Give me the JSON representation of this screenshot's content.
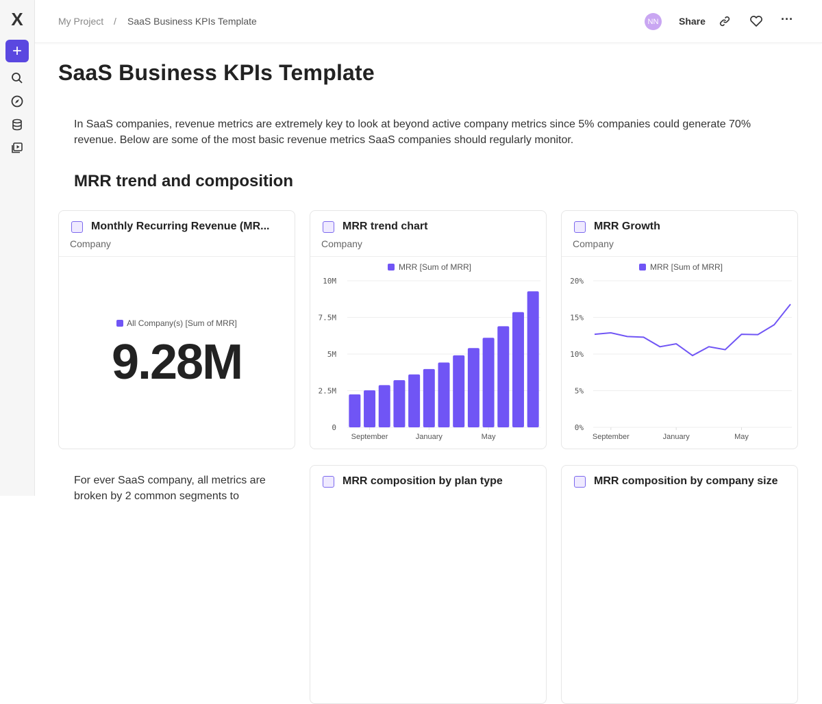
{
  "sidebar": {
    "logo": "X",
    "items": [
      {
        "name": "new",
        "icon": "plus-icon"
      },
      {
        "name": "search",
        "icon": "search-icon"
      },
      {
        "name": "explore",
        "icon": "compass-icon"
      },
      {
        "name": "data",
        "icon": "database-icon"
      },
      {
        "name": "media",
        "icon": "play-icon"
      }
    ]
  },
  "header": {
    "breadcrumb": [
      "My Project",
      "SaaS Business KPIs Template"
    ],
    "separator": "/",
    "avatar": "NN",
    "share": "Share"
  },
  "page": {
    "title": "SaaS Business KPIs Template",
    "intro": "In SaaS companies, revenue metrics are extremely key to look at beyond active company metrics since 5% companies could generate 70% revenue. Below are some of the most basic revenue metrics SaaS companies should regularly monitor.",
    "section": "MRR trend and composition",
    "segments_text": "For ever SaaS company, all metrics are broken by 2 common segments to"
  },
  "accent": "#7055f5",
  "cards": [
    {
      "title": "Monthly Recurring Revenue (MR...",
      "subtitle": "Company",
      "legend": "All Company(s) [Sum of MRR]",
      "value": "9.28M"
    },
    {
      "title": "MRR trend chart",
      "subtitle": "Company"
    },
    {
      "title": "MRR Growth",
      "subtitle": "Company"
    },
    {
      "title": "MRR composition by plan type"
    },
    {
      "title": "MRR composition by company size"
    }
  ],
  "chart_data": [
    {
      "type": "bar",
      "legend": "MRR [Sum of MRR]",
      "ylim": [
        0,
        10000000
      ],
      "yticks": [
        "0",
        "2.5M",
        "5M",
        "7.5M",
        "10M"
      ],
      "xtick_labels": {
        "1": "September",
        "5": "January",
        "9": "May"
      },
      "categories": [
        "Aug",
        "Sep",
        "Oct",
        "Nov",
        "Dec",
        "Jan",
        "Feb",
        "Mar",
        "Apr",
        "May",
        "Jun",
        "Jul",
        "Aug"
      ],
      "values": [
        2250000,
        2530000,
        2880000,
        3220000,
        3610000,
        3980000,
        4420000,
        4910000,
        5410000,
        6110000,
        6900000,
        7860000,
        9280000
      ],
      "grid": true
    },
    {
      "type": "line",
      "legend": "MRR [Sum of MRR]",
      "ylim": [
        0,
        20
      ],
      "yticks": [
        "0%",
        "5%",
        "10%",
        "15%",
        "20%"
      ],
      "xtick_labels": {
        "1": "September",
        "5": "January",
        "9": "May"
      },
      "categories": [
        "Aug",
        "Sep",
        "Oct",
        "Nov",
        "Dec",
        "Jan",
        "Feb",
        "Mar",
        "Apr",
        "May",
        "Jun",
        "Jul",
        "Aug"
      ],
      "values": [
        12.7,
        12.9,
        12.4,
        12.3,
        11.0,
        11.4,
        9.8,
        11.0,
        10.6,
        12.7,
        12.65,
        14.0,
        16.8
      ],
      "grid": true
    }
  ]
}
